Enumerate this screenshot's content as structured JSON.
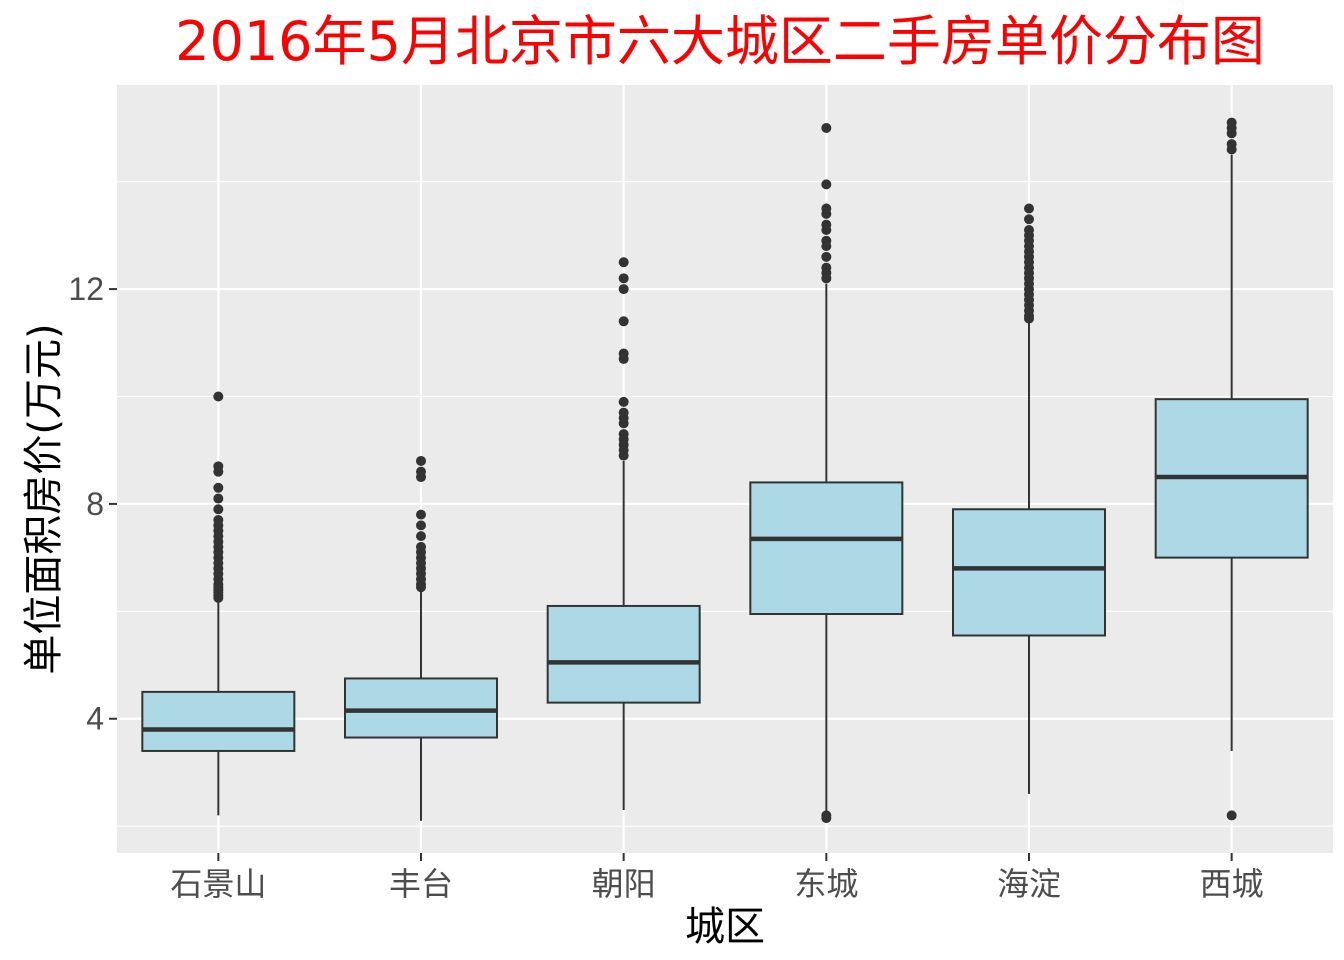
{
  "chart_data": {
    "type": "boxplot",
    "title": "2016年5月北京市六大城区二手房单价分布图",
    "xlabel": "城区",
    "ylabel": "单位面积房价(万元)",
    "ylim": [
      1.5,
      15.8
    ],
    "y_ticks": [
      4,
      8,
      12
    ],
    "grid": true,
    "colors": {
      "panel": "#ebebeb",
      "grid": "#ffffff",
      "box_fill": "#add8e6",
      "box_line": "#333333",
      "title": "#ff0000",
      "tick_text": "#4d4d4d"
    },
    "categories": [
      "石景山",
      "丰台",
      "朝阳",
      "东城",
      "海淀",
      "西城"
    ],
    "boxes": [
      {
        "category": "石景山",
        "min": 2.2,
        "q1": 3.4,
        "median": 3.8,
        "q3": 4.5,
        "max": 6.2,
        "outliers": [
          6.25,
          6.3,
          6.35,
          6.4,
          6.45,
          6.5,
          6.6,
          6.7,
          6.8,
          6.9,
          7.0,
          7.1,
          7.2,
          7.3,
          7.4,
          7.5,
          7.6,
          7.7,
          7.9,
          8.1,
          8.3,
          8.6,
          8.7,
          10.0
        ]
      },
      {
        "category": "丰台",
        "min": 2.1,
        "q1": 3.65,
        "median": 4.15,
        "q3": 4.75,
        "max": 6.4,
        "outliers": [
          6.45,
          6.5,
          6.6,
          6.7,
          6.8,
          6.9,
          7.0,
          7.1,
          7.2,
          7.4,
          7.6,
          7.8,
          8.5,
          8.6,
          8.8
        ]
      },
      {
        "category": "朝阳",
        "min": 2.3,
        "q1": 4.3,
        "median": 5.05,
        "q3": 6.1,
        "max": 8.8,
        "outliers": [
          8.9,
          9.0,
          9.1,
          9.2,
          9.3,
          9.5,
          9.6,
          9.7,
          9.9,
          10.7,
          10.8,
          11.4,
          12.0,
          12.2,
          12.5
        ]
      },
      {
        "category": "东城",
        "min": 2.25,
        "q1": 5.95,
        "median": 7.35,
        "q3": 8.4,
        "max": 12.1,
        "outliers": [
          2.15,
          2.2,
          12.2,
          12.3,
          12.4,
          12.6,
          12.8,
          12.9,
          13.1,
          13.2,
          13.4,
          13.5,
          13.95,
          15.0
        ]
      },
      {
        "category": "海淀",
        "min": 2.6,
        "q1": 5.55,
        "median": 6.8,
        "q3": 7.9,
        "max": 11.4,
        "outliers": [
          11.45,
          11.5,
          11.6,
          11.7,
          11.8,
          11.9,
          12.0,
          12.1,
          12.2,
          12.3,
          12.4,
          12.5,
          12.6,
          12.7,
          12.8,
          12.9,
          13.0,
          13.1,
          13.3,
          13.5
        ]
      },
      {
        "category": "西城",
        "min": 3.4,
        "q1": 7.0,
        "median": 8.5,
        "q3": 9.95,
        "max": 14.5,
        "outliers": [
          2.2,
          14.6,
          14.7,
          14.9,
          15.0,
          15.1
        ]
      }
    ]
  }
}
